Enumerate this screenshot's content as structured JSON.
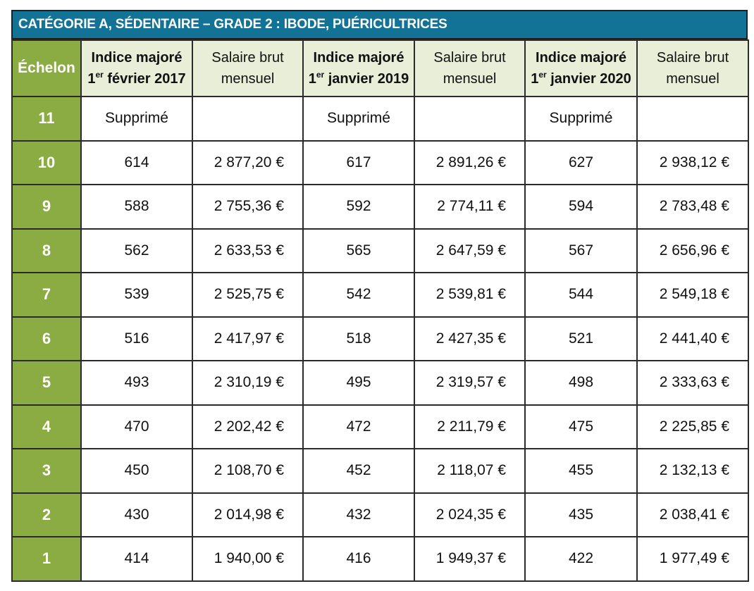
{
  "title": "CATÉGORIE A, SÉDENTAIRE – GRADE 2 : IBODE, PUÉRICULTRICES",
  "header": {
    "echelon": "Échelon",
    "groups": [
      {
        "indice_line1": "Indice majoré",
        "date_ordinal": "1",
        "date_sup": "er",
        "date_rest": " février 2017",
        "salaire_line1": "Salaire brut",
        "salaire_line2": "mensuel"
      },
      {
        "indice_line1": "Indice majoré",
        "date_ordinal": "1",
        "date_sup": "er",
        "date_rest": " janvier 2019",
        "salaire_line1": "Salaire brut",
        "salaire_line2": "mensuel"
      },
      {
        "indice_line1": "Indice majoré",
        "date_ordinal": "1",
        "date_sup": "er",
        "date_rest": " janvier 2020",
        "salaire_line1": "Salaire brut",
        "salaire_line2": "mensuel"
      }
    ]
  },
  "rows": [
    {
      "echelon": "11",
      "cells": [
        "Supprimé",
        "",
        "Supprimé",
        "",
        "Supprimé",
        ""
      ]
    },
    {
      "echelon": "10",
      "cells": [
        "614",
        "2 877,20 €",
        "617",
        "2 891,26 €",
        "627",
        "2 938,12  €"
      ]
    },
    {
      "echelon": "9",
      "cells": [
        "588",
        "2 755,36 €",
        "592",
        "2 774,11 €",
        "594",
        "2 783,48 €"
      ]
    },
    {
      "echelon": "8",
      "cells": [
        "562",
        "2 633,53 €",
        "565",
        "2 647,59 €",
        "567",
        "2 656,96 €"
      ]
    },
    {
      "echelon": "7",
      "cells": [
        "539",
        "2 525,75 €",
        "542",
        "2 539,81 €",
        "544",
        "2 549,18 €"
      ]
    },
    {
      "echelon": "6",
      "cells": [
        "516",
        "2 417,97 €",
        "518",
        "2 427,35 €",
        "521",
        "2 441,40 €"
      ]
    },
    {
      "echelon": "5",
      "cells": [
        "493",
        "2 310,19 €",
        "495",
        "2 319,57 €",
        "498",
        "2 333,63 €"
      ]
    },
    {
      "echelon": "4",
      "cells": [
        "470",
        "2 202,42 €",
        "472",
        "2 211,79 €",
        "475",
        "2 225,85 €"
      ]
    },
    {
      "echelon": "3",
      "cells": [
        "450",
        "2 108,70 €",
        "452",
        "2 118,07 €",
        "455",
        "2 132,13 €"
      ]
    },
    {
      "echelon": "2",
      "cells": [
        "430",
        "2 014,98 €",
        "432",
        "2 024,35 €",
        "435",
        "2 038,41 €"
      ]
    },
    {
      "echelon": "1",
      "cells": [
        "414",
        "1 940,00 €",
        "416",
        "1 949,37 €",
        "422",
        "1 977,49 €"
      ]
    }
  ],
  "colors": {
    "title_bg": "#127396",
    "echelon_bg": "#8bab43",
    "header_bg": "#e8eed7"
  }
}
